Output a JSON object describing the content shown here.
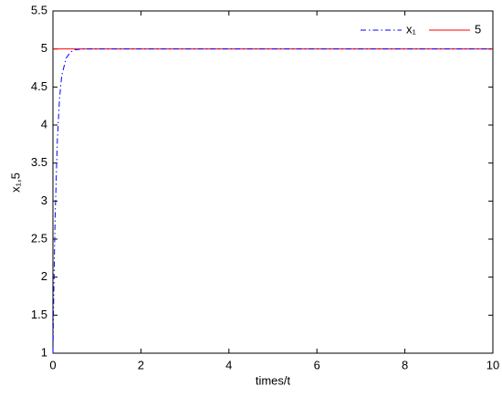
{
  "chart_data": {
    "type": "line",
    "xlabel": "times/t",
    "ylabel": "x₁,5",
    "series": [
      {
        "name": "x₁",
        "color": "#0000ff",
        "dash": "dashdot",
        "x": [
          0,
          0.02,
          0.05,
          0.1,
          0.15,
          0.2,
          0.3,
          0.4,
          0.5,
          0.7,
          1,
          2,
          4,
          6,
          8,
          10
        ],
        "values": [
          1,
          1.85,
          2.8,
          3.8,
          4.35,
          4.65,
          4.88,
          4.96,
          4.99,
          5,
          5,
          5,
          5,
          5,
          5,
          5
        ]
      },
      {
        "name": "5",
        "color": "#ff0000",
        "dash": "solid",
        "x": [
          0,
          10
        ],
        "values": [
          5,
          5
        ]
      }
    ],
    "xlim": [
      0,
      10
    ],
    "xticks": [
      0,
      2,
      4,
      6,
      8,
      10
    ],
    "ylim": [
      1,
      5.5
    ],
    "yticks": [
      1,
      1.5,
      2,
      2.5,
      3,
      3.5,
      4,
      4.5,
      5,
      5.5
    ],
    "grid": false,
    "legend": "upper right"
  }
}
